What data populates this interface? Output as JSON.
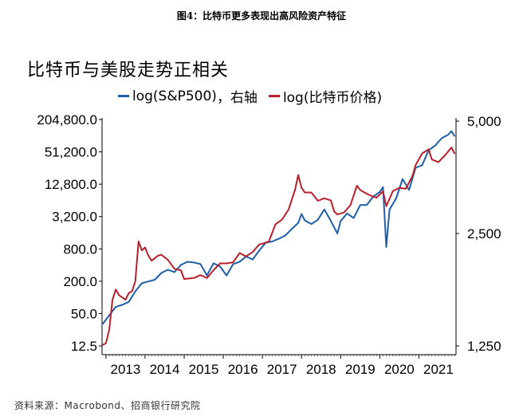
{
  "figure_caption": "图4：比特币更多表现出高风险资产特征",
  "source_note": "资料来源：Macrobond、招商银行研究院",
  "chart_data": {
    "type": "line",
    "title": "比特币与美股走势正相关",
    "legend_position": "top",
    "x_tick_labels": [
      "2013",
      "2014",
      "2015",
      "2016",
      "2017",
      "2018",
      "2019",
      "2020",
      "2021"
    ],
    "left_axis": {
      "scale": "log2",
      "ticks": [
        12.5,
        50,
        200,
        800,
        3200,
        12800,
        51200,
        204800
      ],
      "tick_labels": [
        "12.5",
        "50.0",
        "200.0",
        "800.0",
        "3,200.0",
        "12,800.0",
        "51,200.0",
        "204,800.0"
      ]
    },
    "right_axis": {
      "scale": "log",
      "ticks": [
        1250,
        2500,
        5000
      ],
      "tick_labels": [
        "1,250",
        "2,500",
        "5,000"
      ],
      "label": "右轴"
    },
    "series": [
      {
        "name": "log(S&P500)",
        "legend_suffix": "，右轴",
        "axis": "right",
        "color": "#1f5fa8",
        "points": [
          [
            "2012-12",
            1430
          ],
          [
            "2013-02",
            1510
          ],
          [
            "2013-04",
            1590
          ],
          [
            "2013-06",
            1610
          ],
          [
            "2013-08",
            1640
          ],
          [
            "2013-10",
            1750
          ],
          [
            "2013-12",
            1840
          ],
          [
            "2014-02",
            1860
          ],
          [
            "2014-04",
            1880
          ],
          [
            "2014-06",
            1960
          ],
          [
            "2014-08",
            2000
          ],
          [
            "2014-10",
            1970
          ],
          [
            "2014-12",
            2060
          ],
          [
            "2015-02",
            2100
          ],
          [
            "2015-04",
            2090
          ],
          [
            "2015-06",
            2070
          ],
          [
            "2015-08",
            1930
          ],
          [
            "2015-10",
            2080
          ],
          [
            "2015-12",
            2040
          ],
          [
            "2016-02",
            1930
          ],
          [
            "2016-04",
            2070
          ],
          [
            "2016-06",
            2100
          ],
          [
            "2016-08",
            2170
          ],
          [
            "2016-10",
            2130
          ],
          [
            "2016-12",
            2250
          ],
          [
            "2017-02",
            2360
          ],
          [
            "2017-04",
            2380
          ],
          [
            "2017-06",
            2420
          ],
          [
            "2017-08",
            2470
          ],
          [
            "2017-10",
            2570
          ],
          [
            "2017-12",
            2670
          ],
          [
            "2018-01",
            2820
          ],
          [
            "2018-02",
            2710
          ],
          [
            "2018-04",
            2650
          ],
          [
            "2018-06",
            2720
          ],
          [
            "2018-08",
            2900
          ],
          [
            "2018-10",
            2700
          ],
          [
            "2018-12",
            2500
          ],
          [
            "2019-01",
            2700
          ],
          [
            "2019-03",
            2830
          ],
          [
            "2019-05",
            2750
          ],
          [
            "2019-07",
            2980
          ],
          [
            "2019-09",
            2980
          ],
          [
            "2019-11",
            3140
          ],
          [
            "2020-01",
            3230
          ],
          [
            "2020-02",
            3330
          ],
          [
            "2020-03",
            2300
          ],
          [
            "2020-04",
            2900
          ],
          [
            "2020-06",
            3100
          ],
          [
            "2020-08",
            3500
          ],
          [
            "2020-10",
            3270
          ],
          [
            "2020-12",
            3750
          ],
          [
            "2021-02",
            3810
          ],
          [
            "2021-04",
            4180
          ],
          [
            "2021-06",
            4300
          ],
          [
            "2021-08",
            4500
          ],
          [
            "2021-10",
            4600
          ],
          [
            "2021-11",
            4700
          ],
          [
            "2021-12",
            4550
          ]
        ]
      },
      {
        "name": "log(比特币价格)",
        "axis": "left",
        "color": "#b8202c",
        "points": [
          [
            "2012-12",
            13
          ],
          [
            "2013-01",
            14
          ],
          [
            "2013-02",
            25
          ],
          [
            "2013-03",
            90
          ],
          [
            "2013-04",
            140
          ],
          [
            "2013-05",
            110
          ],
          [
            "2013-06",
            100
          ],
          [
            "2013-07",
            90
          ],
          [
            "2013-08",
            120
          ],
          [
            "2013-09",
            130
          ],
          [
            "2013-10",
            200
          ],
          [
            "2013-11",
            1100
          ],
          [
            "2013-12",
            750
          ],
          [
            "2014-01",
            850
          ],
          [
            "2014-02",
            600
          ],
          [
            "2014-03",
            480
          ],
          [
            "2014-05",
            600
          ],
          [
            "2014-06",
            620
          ],
          [
            "2014-08",
            500
          ],
          [
            "2014-10",
            340
          ],
          [
            "2014-12",
            320
          ],
          [
            "2015-01",
            220
          ],
          [
            "2015-04",
            230
          ],
          [
            "2015-06",
            260
          ],
          [
            "2015-08",
            230
          ],
          [
            "2015-10",
            320
          ],
          [
            "2015-12",
            430
          ],
          [
            "2016-02",
            430
          ],
          [
            "2016-04",
            450
          ],
          [
            "2016-06",
            670
          ],
          [
            "2016-08",
            580
          ],
          [
            "2016-10",
            700
          ],
          [
            "2016-12",
            960
          ],
          [
            "2017-01",
            1000
          ],
          [
            "2017-03",
            1100
          ],
          [
            "2017-05",
            2300
          ],
          [
            "2017-07",
            2800
          ],
          [
            "2017-09",
            4300
          ],
          [
            "2017-11",
            10000
          ],
          [
            "2017-12",
            19000
          ],
          [
            "2018-01",
            11000
          ],
          [
            "2018-02",
            9000
          ],
          [
            "2018-04",
            9000
          ],
          [
            "2018-06",
            6300
          ],
          [
            "2018-08",
            7000
          ],
          [
            "2018-10",
            6400
          ],
          [
            "2018-11",
            4000
          ],
          [
            "2018-12",
            3500
          ],
          [
            "2019-02",
            3800
          ],
          [
            "2019-04",
            5200
          ],
          [
            "2019-06",
            12000
          ],
          [
            "2019-07",
            10000
          ],
          [
            "2019-09",
            8500
          ],
          [
            "2019-11",
            7500
          ],
          [
            "2019-12",
            7200
          ],
          [
            "2020-02",
            9500
          ],
          [
            "2020-03",
            5000
          ],
          [
            "2020-05",
            9500
          ],
          [
            "2020-07",
            11000
          ],
          [
            "2020-09",
            10500
          ],
          [
            "2020-11",
            18000
          ],
          [
            "2020-12",
            29000
          ],
          [
            "2021-02",
            48000
          ],
          [
            "2021-04",
            57000
          ],
          [
            "2021-05",
            37000
          ],
          [
            "2021-07",
            33000
          ],
          [
            "2021-09",
            44000
          ],
          [
            "2021-11",
            62000
          ],
          [
            "2021-12",
            47000
          ]
        ]
      }
    ]
  }
}
